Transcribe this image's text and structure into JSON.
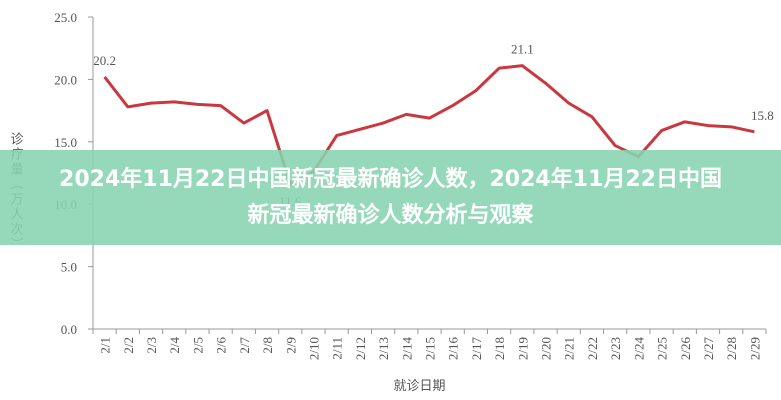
{
  "chart_data": {
    "type": "line",
    "title": "2024年11月22日中国新冠最新确诊人数，2024年11月22日中国新冠最新确诊人数分析与观察",
    "x_label": "就诊日期",
    "y_label": "诊疗量（万人次）",
    "categories": [
      "2/1",
      "2/2",
      "2/3",
      "2/4",
      "2/5",
      "2/6",
      "2/7",
      "2/8",
      "2/9",
      "2/10",
      "2/11",
      "2/12",
      "2/13",
      "2/14",
      "2/15",
      "2/16",
      "2/17",
      "2/18",
      "2/19",
      "2/20",
      "2/21",
      "2/22",
      "2/23",
      "2/24",
      "2/25",
      "2/26",
      "2/27",
      "2/28",
      "2/29"
    ],
    "values": [
      20.2,
      17.8,
      18.1,
      18.2,
      18.0,
      17.9,
      16.5,
      17.5,
      11.6,
      12.6,
      15.5,
      16.0,
      16.5,
      17.2,
      16.9,
      17.9,
      19.1,
      20.9,
      21.1,
      19.7,
      18.1,
      17.0,
      14.7,
      13.8,
      15.9,
      16.6,
      16.3,
      16.2,
      15.8
    ],
    "value_labels": [
      "20.2",
      null,
      null,
      null,
      null,
      null,
      null,
      null,
      "11.6",
      null,
      null,
      null,
      null,
      null,
      null,
      null,
      null,
      null,
      "21.1",
      null,
      null,
      null,
      null,
      null,
      null,
      null,
      null,
      null,
      "15.8"
    ],
    "color": "#c9383e",
    "ylim": [
      0,
      25
    ],
    "yticks": [
      {
        "value": 0,
        "label": "0.0"
      },
      {
        "value": 5,
        "label": "5.0"
      },
      {
        "value": 10,
        "label": "10.0"
      },
      {
        "value": 15,
        "label": "15.0"
      },
      {
        "value": 20,
        "label": "20.0"
      },
      {
        "value": 25,
        "label": "25.0"
      }
    ]
  }
}
